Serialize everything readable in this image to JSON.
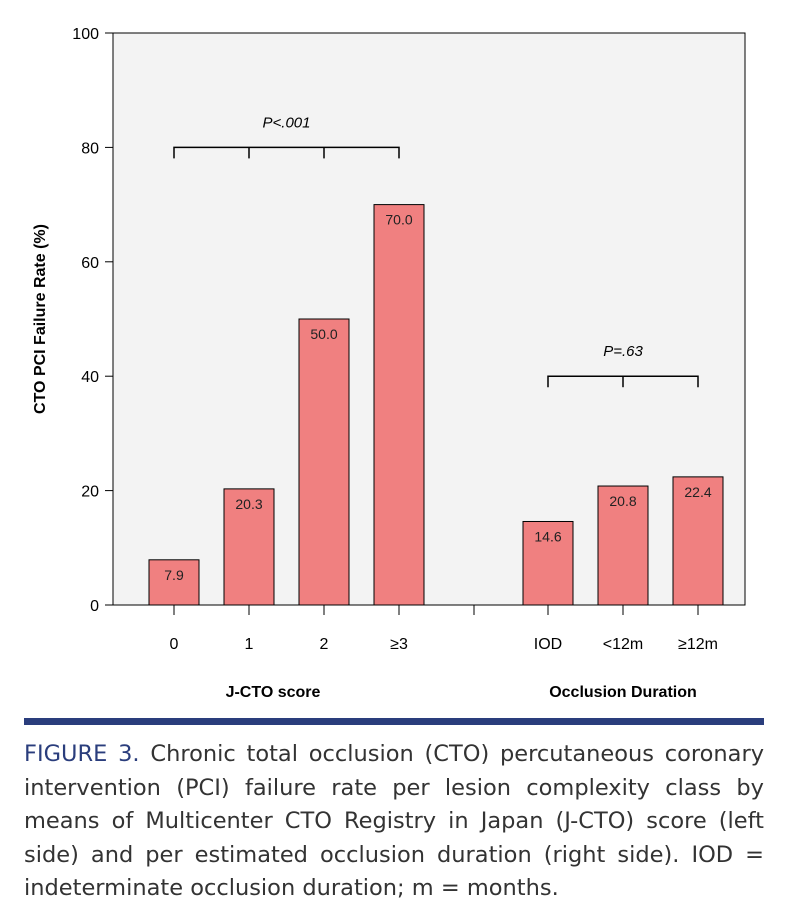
{
  "chart_data": {
    "type": "bar",
    "ylabel": "CTO PCI Failure Rate (%)",
    "ylim": [
      0,
      100
    ],
    "yticks": [
      0,
      20,
      40,
      60,
      80,
      100
    ],
    "grid": false,
    "bar_color": "#f08080",
    "bar_edge_color": "#000000",
    "background": "#f3f3f3",
    "groups": [
      {
        "name": "J-CTO score",
        "categories": [
          "0",
          "1",
          "2",
          "≥3"
        ],
        "values": [
          7.9,
          20.3,
          50.0,
          70.0
        ],
        "value_labels": [
          "7.9",
          "20.3",
          "50.0",
          "70.0"
        ],
        "p_value": "P<.001"
      },
      {
        "name": "Occlusion Duration",
        "categories": [
          "IOD",
          "<12m",
          "≥12m"
        ],
        "values": [
          14.6,
          20.8,
          22.4
        ],
        "value_labels": [
          "14.6",
          "20.8",
          "22.4"
        ],
        "p_value": "P=.63"
      }
    ]
  },
  "caption": {
    "label": "FIGURE 3.",
    "text": "Chronic total occlusion (CTO) percutaneous coronary intervention (PCI) failure rate per lesion complexity class by means of Multicenter CTO Registry in Japan (J-CTO) score (left side) and per estimated occlusion duration (right side). IOD = indeterminate occlusion duration; m = months."
  },
  "colors": {
    "accent": "#2a3d7c",
    "bar": "#f08080",
    "plot_bg": "#f3f3f3"
  }
}
